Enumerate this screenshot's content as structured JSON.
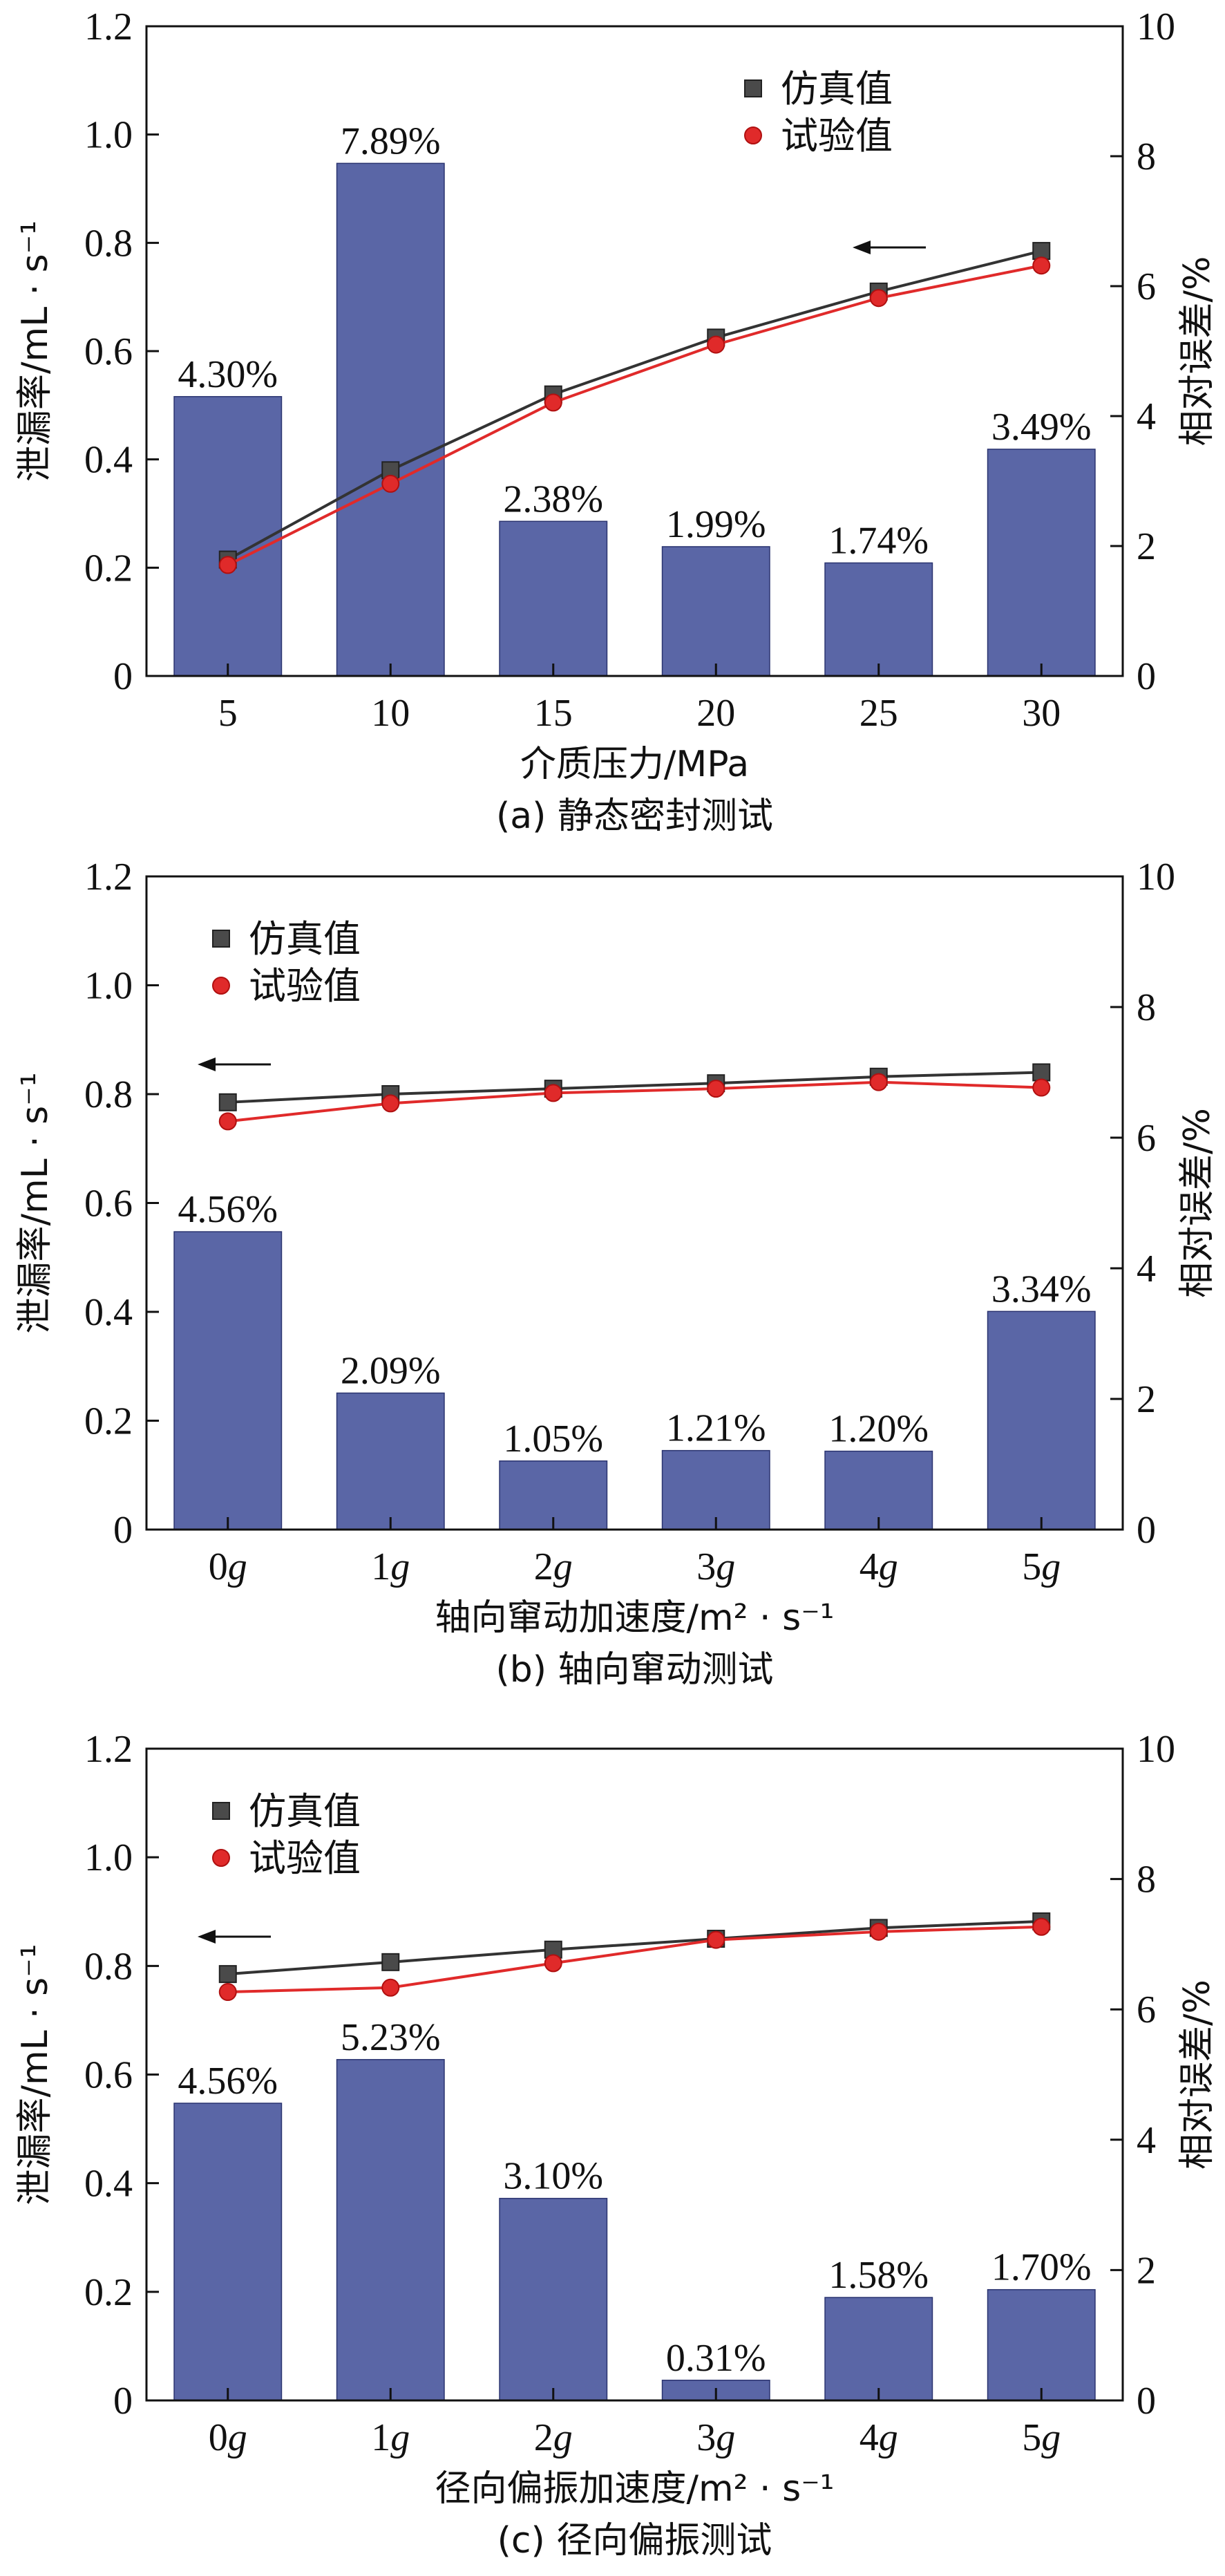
{
  "chart_data": [
    {
      "id": "a",
      "type": "bar+line",
      "categories": [
        "5",
        "10",
        "15",
        "20",
        "25",
        "30"
      ],
      "category_italic_g": false,
      "xlabel": "介质压力/MPa",
      "ylabel_left": "泄漏率/mL · s⁻¹",
      "ylabel_right": "相对误差/%",
      "caption": "(a) 静态密封测试",
      "ylim_left": [
        0,
        1.2
      ],
      "ylim_right": [
        0,
        10
      ],
      "yticks_left": [
        "0",
        "0.2",
        "0.4",
        "0.6",
        "0.8",
        "1.0",
        "1.2"
      ],
      "yticks_right": [
        "0",
        "2",
        "4",
        "6",
        "8",
        "10"
      ],
      "bars": {
        "axis": "right",
        "values": [
          4.3,
          7.89,
          2.38,
          1.99,
          1.74,
          3.49
        ],
        "labels": [
          "4.30%",
          "7.89%",
          "2.38%",
          "1.99%",
          "1.74%",
          "3.49%"
        ],
        "color": "#5a66a6"
      },
      "series": [
        {
          "name": "仿真值",
          "axis": "left",
          "values": [
            0.215,
            0.38,
            0.52,
            0.625,
            0.71,
            0.785
          ],
          "color": "#333333",
          "marker": "square"
        },
        {
          "name": "试验值",
          "axis": "left",
          "values": [
            0.205,
            0.355,
            0.505,
            0.612,
            0.698,
            0.758
          ],
          "color": "#e02a2a",
          "marker": "circle"
        }
      ],
      "legend_position": "top-right",
      "arrow_direction": "left"
    },
    {
      "id": "b",
      "type": "bar+line",
      "categories": [
        "0",
        "1",
        "2",
        "3",
        "4",
        "5"
      ],
      "category_italic_g": true,
      "xlabel": "轴向窜动加速度/m² · s⁻¹",
      "ylabel_left": "泄漏率/mL · s⁻¹",
      "ylabel_right": "相对误差/%",
      "caption": "(b) 轴向窜动测试",
      "ylim_left": [
        0,
        1.2
      ],
      "ylim_right": [
        0,
        10
      ],
      "yticks_left": [
        "0",
        "0.2",
        "0.4",
        "0.6",
        "0.8",
        "1.0",
        "1.2"
      ],
      "yticks_right": [
        "0",
        "2",
        "4",
        "6",
        "8",
        "10"
      ],
      "bars": {
        "axis": "right",
        "values": [
          4.56,
          2.09,
          1.05,
          1.21,
          1.2,
          3.34
        ],
        "labels": [
          "4.56%",
          "2.09%",
          "1.05%",
          "1.21%",
          "1.20%",
          "3.34%"
        ],
        "color": "#5a66a6"
      },
      "series": [
        {
          "name": "仿真值",
          "axis": "left",
          "values": [
            0.785,
            0.8,
            0.81,
            0.82,
            0.832,
            0.84
          ],
          "color": "#333333",
          "marker": "square"
        },
        {
          "name": "试验值",
          "axis": "left",
          "values": [
            0.75,
            0.783,
            0.802,
            0.81,
            0.822,
            0.812
          ],
          "color": "#e02a2a",
          "marker": "circle"
        }
      ],
      "legend_position": "top-left",
      "arrow_direction": "left"
    },
    {
      "id": "c",
      "type": "bar+line",
      "categories": [
        "0",
        "1",
        "2",
        "3",
        "4",
        "5"
      ],
      "category_italic_g": true,
      "xlabel": "径向偏振加速度/m² · s⁻¹",
      "ylabel_left": "泄漏率/mL · s⁻¹",
      "ylabel_right": "相对误差/%",
      "caption": "(c) 径向偏振测试",
      "ylim_left": [
        0,
        1.2
      ],
      "ylim_right": [
        0,
        10
      ],
      "yticks_left": [
        "0",
        "0.2",
        "0.4",
        "0.6",
        "0.8",
        "1.0",
        "1.2"
      ],
      "yticks_right": [
        "0",
        "2",
        "4",
        "6",
        "8",
        "10"
      ],
      "bars": {
        "axis": "right",
        "values": [
          4.56,
          5.23,
          3.1,
          0.31,
          1.58,
          1.7
        ],
        "labels": [
          "4.56%",
          "5.23%",
          "3.10%",
          "0.31%",
          "1.58%",
          "1.70%"
        ],
        "color": "#5a66a6"
      },
      "series": [
        {
          "name": "仿真值",
          "axis": "left",
          "values": [
            0.785,
            0.807,
            0.83,
            0.85,
            0.87,
            0.882
          ],
          "color": "#333333",
          "marker": "square"
        },
        {
          "name": "试验值",
          "axis": "left",
          "values": [
            0.752,
            0.76,
            0.805,
            0.848,
            0.863,
            0.872
          ],
          "color": "#e02a2a",
          "marker": "circle"
        }
      ],
      "legend_position": "top-left",
      "arrow_direction": "left"
    }
  ]
}
